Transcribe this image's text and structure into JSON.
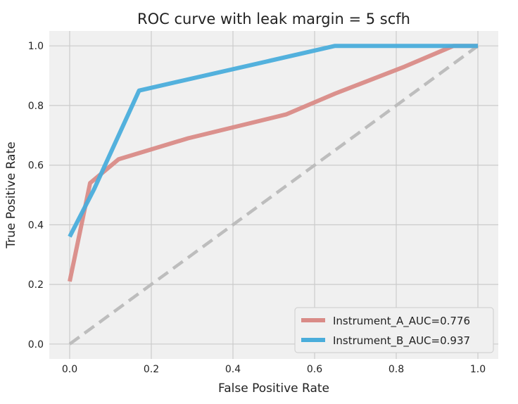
{
  "chart_data": {
    "type": "line",
    "title": "ROC curve with leak margin = 5 scfh",
    "xlabel": "False Positive Rate",
    "ylabel": "True Positive Rate",
    "xlim": [
      -0.05,
      1.05
    ],
    "ylim": [
      -0.05,
      1.05
    ],
    "xticks": [
      "0.0",
      "0.2",
      "0.4",
      "0.6",
      "0.8",
      "1.0"
    ],
    "yticks": [
      "0.0",
      "0.2",
      "0.4",
      "0.6",
      "0.8",
      "1.0"
    ],
    "grid": true,
    "legend_position": "lower-right",
    "background": "#f0f0f0",
    "diagonal": {
      "x": [
        0,
        1
      ],
      "y": [
        0,
        1
      ],
      "color": "#bdbdbd",
      "style": "dashed"
    },
    "series": [
      {
        "name": "Instrument_A_AUC=0.776",
        "color": "#d98b87",
        "x": [
          0.0,
          0.05,
          0.12,
          0.29,
          0.53,
          0.65,
          0.82,
          0.94,
          1.0
        ],
        "y": [
          0.21,
          0.54,
          0.62,
          0.69,
          0.77,
          0.84,
          0.93,
          1.0,
          1.0
        ]
      },
      {
        "name": "Instrument_B_AUC=0.937",
        "color": "#4aaddb",
        "x": [
          0.0,
          0.06,
          0.17,
          0.65,
          1.0
        ],
        "y": [
          0.36,
          0.52,
          0.85,
          1.0,
          1.0
        ]
      }
    ]
  }
}
